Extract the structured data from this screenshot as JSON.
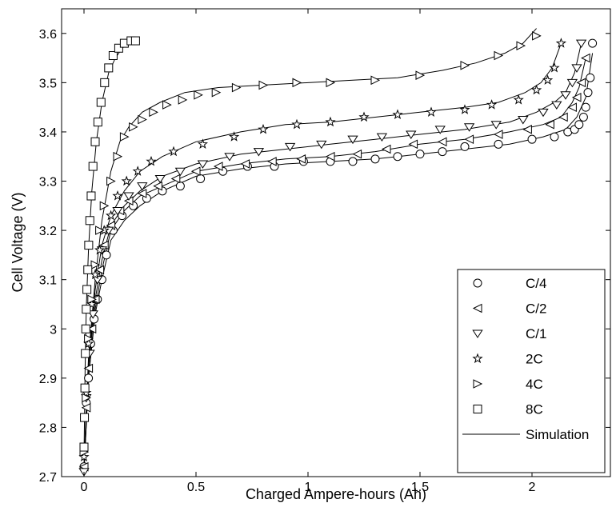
{
  "chart_data": {
    "type": "line",
    "xlabel": "Charged Ampere-hours (Ah)",
    "ylabel": "Cell Voltage (V)",
    "xlim": [
      -0.1,
      2.35
    ],
    "ylim": [
      2.7,
      3.65
    ],
    "xticks": [
      0,
      0.5,
      1,
      1.5,
      2
    ],
    "xtick_labels": [
      "0",
      "0.5",
      "1",
      "1.5",
      "2"
    ],
    "yticks": [
      2.7,
      2.8,
      2.9,
      3.0,
      3.1,
      3.2,
      3.3,
      3.4,
      3.5,
      3.6
    ],
    "ytick_labels": [
      "2.7",
      "2.8",
      "2.9",
      "3",
      "3.1",
      "3.2",
      "3.3",
      "3.4",
      "3.5",
      "3.6"
    ],
    "grid": false,
    "legend_position": "bottom-right",
    "series": [
      {
        "name": "C/4",
        "marker": "circle",
        "x": [
          0.0,
          0.01,
          0.02,
          0.03,
          0.045,
          0.06,
          0.08,
          0.1,
          0.13,
          0.17,
          0.22,
          0.28,
          0.35,
          0.43,
          0.52,
          0.62,
          0.73,
          0.85,
          0.98,
          1.1,
          1.2,
          1.3,
          1.4,
          1.5,
          1.6,
          1.7,
          1.85,
          2.0,
          2.1,
          2.16,
          2.19,
          2.21,
          2.23,
          2.24,
          2.25,
          2.26,
          2.27
        ],
        "y": [
          2.72,
          2.85,
          2.9,
          2.97,
          3.02,
          3.06,
          3.1,
          3.15,
          3.2,
          3.23,
          3.25,
          3.265,
          3.28,
          3.29,
          3.305,
          3.32,
          3.33,
          3.33,
          3.34,
          3.34,
          3.34,
          3.345,
          3.35,
          3.355,
          3.36,
          3.37,
          3.375,
          3.385,
          3.39,
          3.4,
          3.405,
          3.415,
          3.43,
          3.45,
          3.48,
          3.51,
          3.58
        ]
      },
      {
        "name": "C/2",
        "marker": "triangle-left",
        "x": [
          0.0,
          0.01,
          0.02,
          0.035,
          0.05,
          0.07,
          0.09,
          0.12,
          0.16,
          0.2,
          0.26,
          0.33,
          0.41,
          0.5,
          0.6,
          0.72,
          0.84,
          0.97,
          1.1,
          1.22,
          1.35,
          1.47,
          1.6,
          1.72,
          1.85,
          1.98,
          2.08,
          2.14,
          2.18,
          2.2,
          2.22,
          2.24
        ],
        "y": [
          2.72,
          2.84,
          2.92,
          3.0,
          3.06,
          3.12,
          3.17,
          3.21,
          3.24,
          3.26,
          3.275,
          3.29,
          3.305,
          3.32,
          3.33,
          3.335,
          3.34,
          3.345,
          3.35,
          3.355,
          3.365,
          3.375,
          3.38,
          3.385,
          3.395,
          3.405,
          3.415,
          3.43,
          3.45,
          3.47,
          3.5,
          3.55
        ]
      },
      {
        "name": "C/1",
        "marker": "triangle-down",
        "x": [
          0.0,
          0.01,
          0.025,
          0.04,
          0.06,
          0.08,
          0.11,
          0.15,
          0.2,
          0.26,
          0.34,
          0.43,
          0.53,
          0.65,
          0.78,
          0.92,
          1.06,
          1.2,
          1.33,
          1.46,
          1.59,
          1.72,
          1.84,
          1.96,
          2.05,
          2.11,
          2.15,
          2.18,
          2.2,
          2.22
        ],
        "y": [
          2.71,
          2.86,
          2.95,
          3.03,
          3.1,
          3.16,
          3.2,
          3.24,
          3.27,
          3.29,
          3.305,
          3.32,
          3.335,
          3.35,
          3.36,
          3.37,
          3.375,
          3.385,
          3.39,
          3.395,
          3.405,
          3.41,
          3.415,
          3.425,
          3.44,
          3.455,
          3.475,
          3.5,
          3.53,
          3.58
        ]
      },
      {
        "name": "2C",
        "marker": "star",
        "x": [
          0.0,
          0.01,
          0.02,
          0.035,
          0.05,
          0.07,
          0.09,
          0.12,
          0.15,
          0.19,
          0.24,
          0.3,
          0.4,
          0.53,
          0.67,
          0.8,
          0.95,
          1.1,
          1.25,
          1.4,
          1.55,
          1.7,
          1.82,
          1.94,
          2.02,
          2.07,
          2.1,
          2.13
        ],
        "y": [
          2.74,
          2.87,
          2.97,
          3.05,
          3.11,
          3.16,
          3.2,
          3.23,
          3.27,
          3.3,
          3.32,
          3.34,
          3.36,
          3.375,
          3.39,
          3.405,
          3.415,
          3.42,
          3.43,
          3.435,
          3.44,
          3.445,
          3.455,
          3.465,
          3.485,
          3.505,
          3.53,
          3.58
        ]
      },
      {
        "name": "4C",
        "marker": "triangle-right",
        "x": [
          0.0,
          0.01,
          0.02,
          0.035,
          0.05,
          0.07,
          0.09,
          0.12,
          0.15,
          0.18,
          0.22,
          0.26,
          0.31,
          0.37,
          0.44,
          0.51,
          0.59,
          0.68,
          0.8,
          0.95,
          1.1,
          1.3,
          1.5,
          1.7,
          1.85,
          1.95,
          2.02
        ],
        "y": [
          2.75,
          2.86,
          2.98,
          3.06,
          3.13,
          3.2,
          3.25,
          3.3,
          3.35,
          3.39,
          3.41,
          3.425,
          3.44,
          3.455,
          3.465,
          3.475,
          3.48,
          3.49,
          3.495,
          3.5,
          3.5,
          3.505,
          3.515,
          3.535,
          3.555,
          3.575,
          3.595
        ]
      },
      {
        "name": "8C",
        "marker": "square",
        "x": [
          0.0,
          0.002,
          0.004,
          0.006,
          0.008,
          0.01,
          0.013,
          0.017,
          0.021,
          0.026,
          0.032,
          0.04,
          0.05,
          0.062,
          0.076,
          0.092,
          0.11,
          0.13,
          0.155,
          0.18,
          0.21,
          0.23
        ],
        "y": [
          2.76,
          2.82,
          2.88,
          2.95,
          3.0,
          3.04,
          3.08,
          3.12,
          3.17,
          3.22,
          3.27,
          3.33,
          3.38,
          3.42,
          3.46,
          3.5,
          3.53,
          3.555,
          3.57,
          3.58,
          3.585,
          3.585
        ]
      }
    ],
    "simulation": {
      "name": "Simulation",
      "curves": [
        {
          "x": [
            0.0,
            0.02,
            0.05,
            0.08,
            0.12,
            0.18,
            0.25,
            0.35,
            0.5,
            0.7,
            0.9,
            1.1,
            1.3,
            1.5,
            1.7,
            1.9,
            2.05,
            2.15,
            2.2,
            2.24,
            2.27
          ],
          "y": [
            2.71,
            2.9,
            3.03,
            3.1,
            3.18,
            3.22,
            3.25,
            3.28,
            3.31,
            3.325,
            3.335,
            3.34,
            3.345,
            3.355,
            3.365,
            3.375,
            3.39,
            3.405,
            3.43,
            3.47,
            3.56
          ]
        },
        {
          "x": [
            0.0,
            0.02,
            0.05,
            0.08,
            0.12,
            0.18,
            0.25,
            0.35,
            0.5,
            0.7,
            0.9,
            1.1,
            1.3,
            1.5,
            1.7,
            1.9,
            2.05,
            2.13,
            2.18,
            2.21,
            2.24
          ],
          "y": [
            2.71,
            2.9,
            3.04,
            3.12,
            3.2,
            3.24,
            3.27,
            3.29,
            3.32,
            3.335,
            3.345,
            3.35,
            3.36,
            3.375,
            3.385,
            3.4,
            3.415,
            3.43,
            3.46,
            3.49,
            3.55
          ]
        },
        {
          "x": [
            0.0,
            0.02,
            0.05,
            0.08,
            0.12,
            0.18,
            0.25,
            0.35,
            0.5,
            0.7,
            0.9,
            1.1,
            1.3,
            1.5,
            1.7,
            1.9,
            2.02,
            2.1,
            2.15,
            2.19,
            2.22
          ],
          "y": [
            2.71,
            2.92,
            3.06,
            3.14,
            3.21,
            3.25,
            3.28,
            3.31,
            3.335,
            3.355,
            3.365,
            3.375,
            3.385,
            3.395,
            3.405,
            3.42,
            3.44,
            3.46,
            3.48,
            3.52,
            3.58
          ]
        },
        {
          "x": [
            0.0,
            0.02,
            0.05,
            0.08,
            0.12,
            0.18,
            0.25,
            0.35,
            0.5,
            0.7,
            0.9,
            1.1,
            1.3,
            1.5,
            1.7,
            1.85,
            1.97,
            2.04,
            2.09,
            2.13
          ],
          "y": [
            2.72,
            2.93,
            3.08,
            3.17,
            3.23,
            3.28,
            3.32,
            3.35,
            3.38,
            3.4,
            3.415,
            3.42,
            3.43,
            3.44,
            3.45,
            3.46,
            3.48,
            3.5,
            3.53,
            3.58
          ]
        },
        {
          "x": [
            0.0,
            0.02,
            0.05,
            0.08,
            0.12,
            0.16,
            0.2,
            0.26,
            0.34,
            0.45,
            0.6,
            0.8,
            1.0,
            1.2,
            1.4,
            1.6,
            1.75,
            1.88,
            1.96,
            2.02
          ],
          "y": [
            2.73,
            2.94,
            3.1,
            3.22,
            3.32,
            3.38,
            3.41,
            3.44,
            3.46,
            3.48,
            3.49,
            3.495,
            3.5,
            3.505,
            3.51,
            3.525,
            3.54,
            3.56,
            3.58,
            3.61
          ]
        },
        {
          "x": [
            0.0,
            0.005,
            0.01,
            0.02,
            0.035,
            0.055,
            0.08,
            0.11,
            0.14,
            0.17,
            0.2,
            0.23
          ],
          "y": [
            2.74,
            2.92,
            3.04,
            3.16,
            3.28,
            3.38,
            3.46,
            3.52,
            3.55,
            3.57,
            3.58,
            3.585
          ]
        }
      ]
    }
  }
}
